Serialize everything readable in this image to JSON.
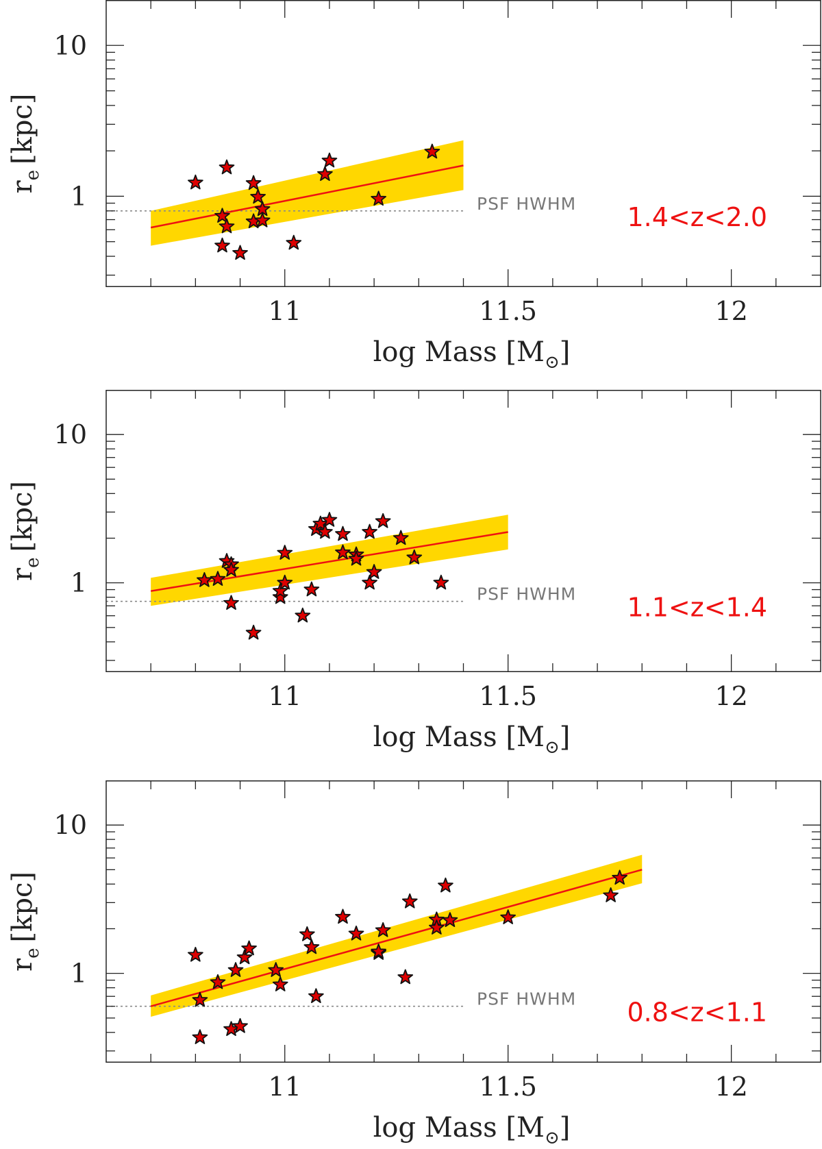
{
  "chart_data": [
    {
      "type": "scatter",
      "xlabel": "log Mass [M",
      "xlabel_sub": "⊙",
      "xlabel_close": "]",
      "ylabel": "r",
      "ylabel_sub": "e",
      "ylabel_unit": "[kpc]",
      "xlim": [
        10.6,
        12.2
      ],
      "ylim": [
        0.25,
        20
      ],
      "yscale": "log",
      "xticks": [
        11,
        11.5,
        12
      ],
      "xtick_labels": [
        "11",
        "11.5",
        "12"
      ],
      "yticks": [
        1,
        10
      ],
      "ytick_labels": [
        "1",
        "10"
      ],
      "psf_label": "PSF HWHM",
      "psf_value": 0.8,
      "redshift_label": "1.4<z<2.0",
      "fit": {
        "x": [
          10.7,
          11.4
        ],
        "y": [
          0.62,
          1.6
        ]
      },
      "band": {
        "x": [
          10.7,
          11.4
        ],
        "lower": [
          0.47,
          1.1
        ],
        "upper": [
          0.8,
          2.35
        ]
      },
      "points": [
        {
          "x": 10.8,
          "y": 1.23
        },
        {
          "x": 10.87,
          "y": 1.55
        },
        {
          "x": 10.93,
          "y": 1.22
        },
        {
          "x": 10.94,
          "y": 0.99
        },
        {
          "x": 10.95,
          "y": 0.82
        },
        {
          "x": 10.86,
          "y": 0.74
        },
        {
          "x": 10.87,
          "y": 0.63
        },
        {
          "x": 10.93,
          "y": 0.68
        },
        {
          "x": 10.95,
          "y": 0.69
        },
        {
          "x": 10.86,
          "y": 0.47
        },
        {
          "x": 10.9,
          "y": 0.42
        },
        {
          "x": 11.02,
          "y": 0.49
        },
        {
          "x": 11.09,
          "y": 1.4
        },
        {
          "x": 11.1,
          "y": 1.72
        },
        {
          "x": 11.21,
          "y": 0.96
        },
        {
          "x": 11.33,
          "y": 1.97
        }
      ]
    },
    {
      "type": "scatter",
      "xlabel": "log Mass [M",
      "xlabel_sub": "⊙",
      "xlabel_close": "]",
      "ylabel": "r",
      "ylabel_sub": "e",
      "ylabel_unit": "[kpc]",
      "xlim": [
        10.6,
        12.2
      ],
      "ylim": [
        0.25,
        20
      ],
      "yscale": "log",
      "xticks": [
        11,
        11.5,
        12
      ],
      "xtick_labels": [
        "11",
        "11.5",
        "12"
      ],
      "yticks": [
        1,
        10
      ],
      "ytick_labels": [
        "1",
        "10"
      ],
      "psf_label": "PSF HWHM",
      "psf_value": 0.75,
      "redshift_label": "1.1<z<1.4",
      "fit": {
        "x": [
          10.7,
          11.5
        ],
        "y": [
          0.88,
          2.2
        ]
      },
      "band": {
        "x": [
          10.7,
          11.5
        ],
        "lower": [
          0.7,
          1.68
        ],
        "upper": [
          1.08,
          2.88
        ]
      },
      "points": [
        {
          "x": 10.82,
          "y": 1.04
        },
        {
          "x": 10.85,
          "y": 1.06
        },
        {
          "x": 10.87,
          "y": 1.4
        },
        {
          "x": 10.88,
          "y": 1.33
        },
        {
          "x": 10.88,
          "y": 1.22
        },
        {
          "x": 10.88,
          "y": 0.73
        },
        {
          "x": 10.93,
          "y": 0.46
        },
        {
          "x": 10.99,
          "y": 0.8
        },
        {
          "x": 10.99,
          "y": 0.88
        },
        {
          "x": 11.0,
          "y": 1.0
        },
        {
          "x": 11.0,
          "y": 1.59
        },
        {
          "x": 11.04,
          "y": 0.6
        },
        {
          "x": 11.06,
          "y": 0.9
        },
        {
          "x": 11.07,
          "y": 2.3
        },
        {
          "x": 11.08,
          "y": 2.5
        },
        {
          "x": 11.09,
          "y": 2.2
        },
        {
          "x": 11.1,
          "y": 2.65
        },
        {
          "x": 11.13,
          "y": 2.13
        },
        {
          "x": 11.13,
          "y": 1.6
        },
        {
          "x": 11.16,
          "y": 1.55
        },
        {
          "x": 11.16,
          "y": 1.45
        },
        {
          "x": 11.19,
          "y": 2.2
        },
        {
          "x": 11.19,
          "y": 1.0
        },
        {
          "x": 11.2,
          "y": 1.18
        },
        {
          "x": 11.22,
          "y": 2.6
        },
        {
          "x": 11.26,
          "y": 2.0
        },
        {
          "x": 11.29,
          "y": 1.48
        },
        {
          "x": 11.35,
          "y": 1.0
        }
      ]
    },
    {
      "type": "scatter",
      "xlabel": "log Mass [M",
      "xlabel_sub": "⊙",
      "xlabel_close": "]",
      "ylabel": "r",
      "ylabel_sub": "e",
      "ylabel_unit": "[kpc]",
      "xlim": [
        10.6,
        12.2
      ],
      "ylim": [
        0.25,
        20
      ],
      "yscale": "log",
      "xticks": [
        11,
        11.5,
        12
      ],
      "xtick_labels": [
        "11",
        "11.5",
        "12"
      ],
      "yticks": [
        1,
        10
      ],
      "ytick_labels": [
        "1",
        "10"
      ],
      "psf_label": "PSF HWHM",
      "psf_value": 0.6,
      "redshift_label": "0.8<z<1.1",
      "fit": {
        "x": [
          10.7,
          11.8
        ],
        "y": [
          0.6,
          5.0
        ]
      },
      "band": {
        "x": [
          10.7,
          11.8
        ],
        "lower": [
          0.51,
          4.05
        ],
        "upper": [
          0.71,
          6.3
        ]
      },
      "points": [
        {
          "x": 10.8,
          "y": 1.33
        },
        {
          "x": 10.81,
          "y": 0.66
        },
        {
          "x": 10.81,
          "y": 0.37
        },
        {
          "x": 10.85,
          "y": 0.87
        },
        {
          "x": 10.88,
          "y": 0.42
        },
        {
          "x": 10.9,
          "y": 0.44
        },
        {
          "x": 10.89,
          "y": 1.05
        },
        {
          "x": 10.91,
          "y": 1.28
        },
        {
          "x": 10.92,
          "y": 1.47
        },
        {
          "x": 10.98,
          "y": 1.05
        },
        {
          "x": 10.99,
          "y": 0.84
        },
        {
          "x": 11.05,
          "y": 1.83
        },
        {
          "x": 11.06,
          "y": 1.5
        },
        {
          "x": 11.07,
          "y": 0.7
        },
        {
          "x": 11.13,
          "y": 2.4
        },
        {
          "x": 11.16,
          "y": 1.85
        },
        {
          "x": 11.21,
          "y": 1.37
        },
        {
          "x": 11.21,
          "y": 1.4
        },
        {
          "x": 11.22,
          "y": 1.95
        },
        {
          "x": 11.27,
          "y": 0.94
        },
        {
          "x": 11.28,
          "y": 3.05
        },
        {
          "x": 11.34,
          "y": 2.3
        },
        {
          "x": 11.34,
          "y": 2.03
        },
        {
          "x": 11.36,
          "y": 3.9
        },
        {
          "x": 11.37,
          "y": 2.28
        },
        {
          "x": 11.5,
          "y": 2.38
        },
        {
          "x": 11.73,
          "y": 3.35
        },
        {
          "x": 11.75,
          "y": 4.4
        }
      ]
    }
  ],
  "colors": {
    "band": "#ffd700",
    "fit": "#ee1111",
    "star_fill": "#dd0000",
    "star_stroke": "#111111",
    "psf_line": "#888888",
    "redshift_label": "#ee1111",
    "axis": "#222222"
  }
}
